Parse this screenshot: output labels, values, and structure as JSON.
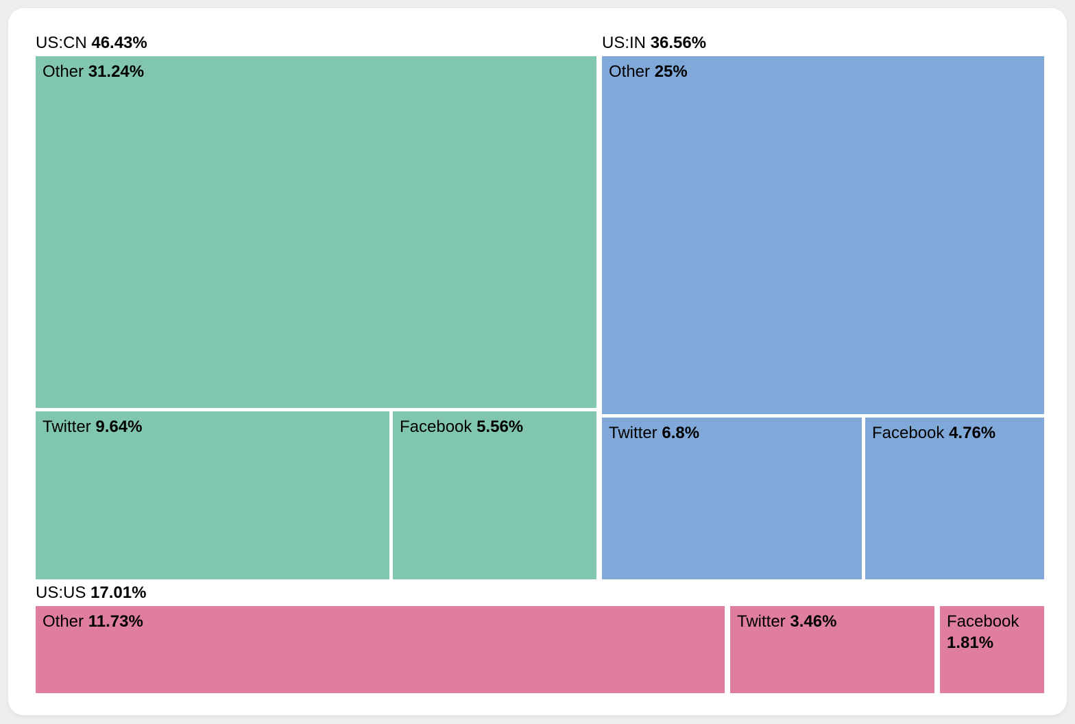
{
  "chart_data": {
    "type": "treemap",
    "layout": "grouped-treemap, top row two groups side by side, bottom row one full-width group",
    "legend": "none",
    "groups": [
      {
        "label": "US:CN",
        "value": 46.43,
        "value_label": "46.43%",
        "color": "#81c7ad",
        "children": [
          {
            "label": "Other",
            "value": 31.24,
            "value_label": "31.24%"
          },
          {
            "label": "Twitter",
            "value": 9.64,
            "value_label": "9.64%"
          },
          {
            "label": "Facebook",
            "value": 5.56,
            "value_label": "5.56%"
          }
        ]
      },
      {
        "label": "US:IN",
        "value": 36.56,
        "value_label": "36.56%",
        "color": "#80a8d8",
        "children": [
          {
            "label": "Other",
            "value": 25,
            "value_label": "25%"
          },
          {
            "label": "Twitter",
            "value": 6.8,
            "value_label": "6.8%"
          },
          {
            "label": "Facebook",
            "value": 4.76,
            "value_label": "4.76%"
          }
        ]
      },
      {
        "label": "US:US",
        "value": 17.01,
        "value_label": "17.01%",
        "color": "#df7e9e",
        "children": [
          {
            "label": "Other",
            "value": 11.73,
            "value_label": "11.73%"
          },
          {
            "label": "Twitter",
            "value": 3.46,
            "value_label": "3.46%"
          },
          {
            "label": "Facebook",
            "value": 1.81,
            "value_label": "1.81%"
          }
        ]
      }
    ],
    "background_color": "#edeff1",
    "card_color": "#ffffff",
    "text_color": "#000000"
  }
}
